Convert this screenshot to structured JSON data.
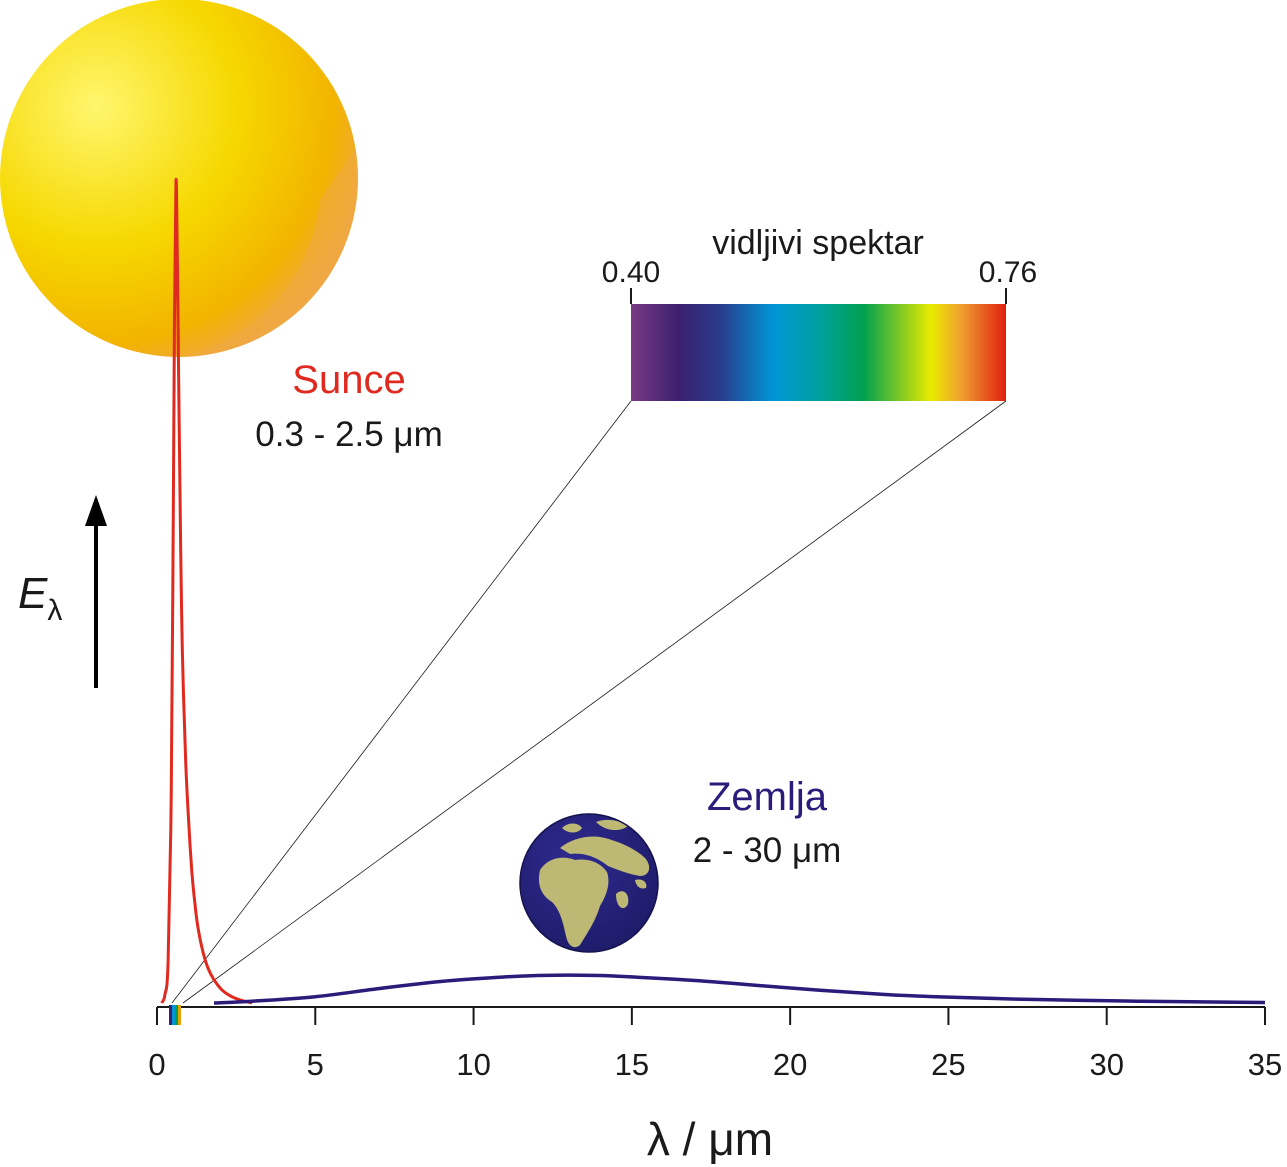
{
  "chart_data": {
    "type": "line",
    "xlabel": "λ / μm",
    "ylabel": {
      "main": "E",
      "sub": "λ"
    },
    "xlim": [
      0,
      35
    ],
    "xticks": [
      0,
      5,
      10,
      15,
      20,
      25,
      30,
      35
    ],
    "series": [
      {
        "name": "Sunce",
        "range_label": "0.3 - 2.5 μm",
        "color": "#e02a20",
        "x": [
          0.15,
          0.25,
          0.35,
          0.45,
          0.5,
          0.55,
          0.6,
          0.65,
          0.7,
          0.75,
          0.8,
          0.9,
          1.0,
          1.1,
          1.2,
          1.3,
          1.5,
          1.7,
          2.0,
          2.3,
          2.6,
          3.0
        ],
        "y": [
          0.0,
          0.01,
          0.05,
          0.25,
          0.5,
          0.82,
          1.0,
          0.88,
          0.7,
          0.55,
          0.43,
          0.3,
          0.22,
          0.16,
          0.12,
          0.09,
          0.055,
          0.035,
          0.018,
          0.009,
          0.004,
          0.0
        ]
      },
      {
        "name": "Zemlja",
        "range_label": "2 - 30 μm",
        "color": "#2c1b7a",
        "x": [
          1.8,
          3,
          5,
          7,
          9,
          11,
          12,
          13,
          14,
          15,
          17,
          19,
          21,
          23,
          25,
          27,
          29,
          31,
          33,
          35
        ],
        "y": [
          0.0,
          0.002,
          0.007,
          0.016,
          0.024,
          0.029,
          0.0305,
          0.031,
          0.0305,
          0.029,
          0.025,
          0.0195,
          0.014,
          0.0095,
          0.0065,
          0.0045,
          0.003,
          0.002,
          0.0012,
          0.0005
        ]
      }
    ],
    "inset": {
      "title": "vidljivi spektar",
      "min_label": "0.40",
      "max_label": "0.76",
      "range": [
        0.4,
        0.76
      ],
      "spectrum_colors": [
        "#7a3a85",
        "#3b2070",
        "#283c8c",
        "#0096d6",
        "#00a0a0",
        "#00a050",
        "#e8eb00",
        "#f0a030",
        "#e02010"
      ]
    }
  },
  "colors": {
    "sun_body": "#f6c800",
    "sun_highlight": "#fff36a",
    "ocean": "#27237a",
    "land": "#bdb874"
  },
  "icons": [
    "sun-icon",
    "earth-icon",
    "y-axis-arrow-icon"
  ]
}
